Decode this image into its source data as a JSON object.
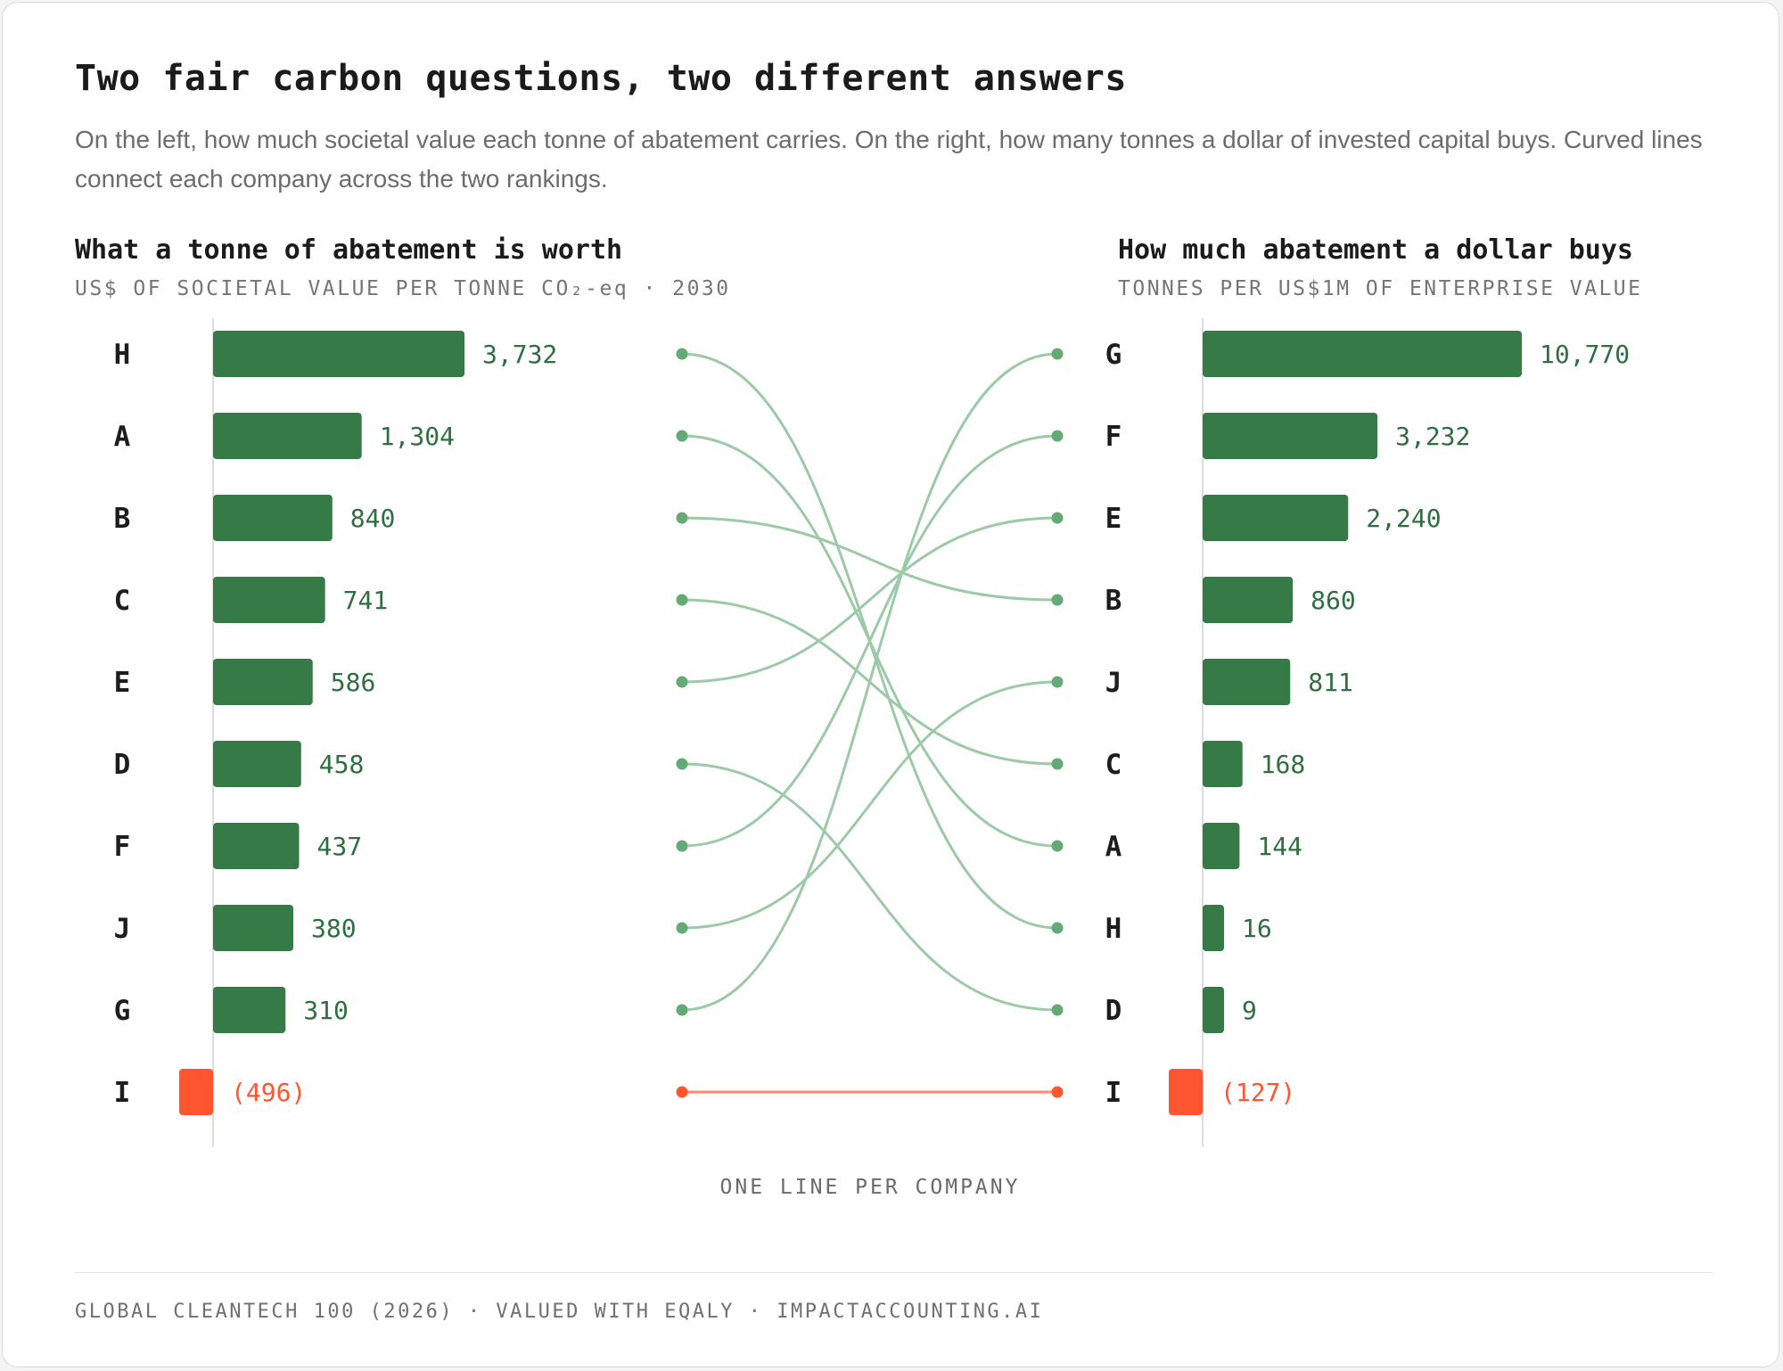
{
  "header": {
    "title": "Two fair carbon questions, two different answers",
    "subtitle": "On the left, how much societal value each tonne of abatement carries. On the right, how many tonnes a dollar of invested capital buys. Curved lines connect each company across the two rankings."
  },
  "chart_data": {
    "type": "bar",
    "left": {
      "title": "What a tonne of abatement is worth",
      "unit_label": "US$ OF SOCIETAL VALUE PER TONNE CO₂-eq · 2030",
      "categories": [
        "H",
        "A",
        "B",
        "C",
        "E",
        "D",
        "F",
        "J",
        "G",
        "I"
      ],
      "values": [
        3732,
        1304,
        840,
        741,
        586,
        458,
        437,
        380,
        310,
        -496
      ],
      "value_labels": [
        "3,732",
        "1,304",
        "840",
        "741",
        "586",
        "458",
        "437",
        "380",
        "310",
        "(496)"
      ]
    },
    "right": {
      "title": "How much abatement a dollar buys",
      "unit_label": "TONNES PER US$1M OF ENTERPRISE VALUE",
      "categories": [
        "G",
        "F",
        "E",
        "B",
        "J",
        "C",
        "A",
        "H",
        "D",
        "I"
      ],
      "values": [
        10770,
        3232,
        2240,
        860,
        811,
        168,
        144,
        16,
        9,
        -127
      ],
      "value_labels": [
        "10,770",
        "3,232",
        "2,240",
        "860",
        "811",
        "168",
        "144",
        "16",
        "9",
        "(127)"
      ]
    },
    "connector_caption": "ONE LINE PER COMPANY"
  },
  "colors": {
    "positive_bar": "#357a47",
    "negative_bar": "#ff5630",
    "positive_label": "#2f6f3f",
    "negative_label": "#ff5630",
    "connector": "#9cc9a6",
    "connector_dot": "#63aa74",
    "negative_connector": "#ff8a6e",
    "negative_dot": "#ff5630"
  },
  "footer": {
    "source": "GLOBAL CLEANTECH 100 (2026) · VALUED WITH EQALY · IMPACTACCOUNTING.AI"
  }
}
